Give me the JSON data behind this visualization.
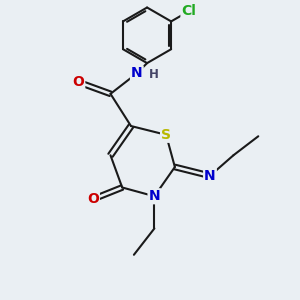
{
  "bg_color": "#eaeff3",
  "bond_color": "#1a1a1a",
  "atom_colors": {
    "S": "#b8b800",
    "N": "#0000cc",
    "O": "#cc0000",
    "Cl": "#22aa22",
    "C": "#1a1a1a",
    "H": "#444466"
  },
  "font_size": 9,
  "bond_width": 1.5
}
